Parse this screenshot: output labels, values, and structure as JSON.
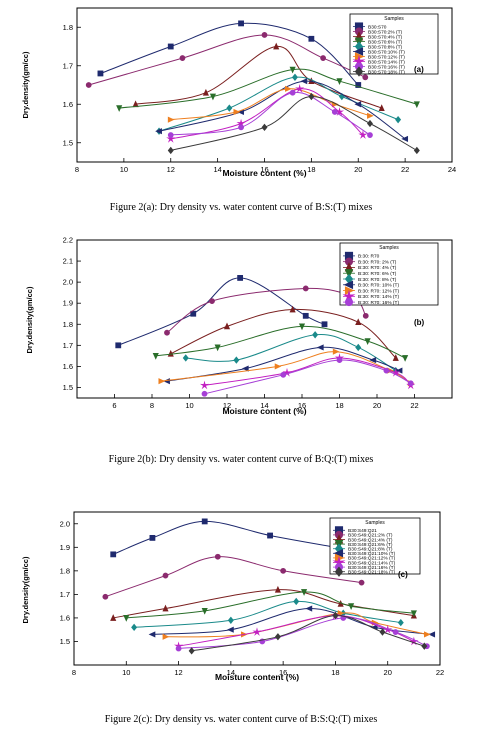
{
  "captions": [
    "Figure 2(a): Dry density vs. water content curve of  B:S:(T) mixes",
    "Figure 2(b): Dry density vs. water content curve of B:Q:(T) mixes",
    "Figure 2(c): Dry density vs. water content curve of  B:S:Q:(T) mixes"
  ],
  "chart_data": [
    {
      "type": "line",
      "panel_label": "(a)",
      "xlabel": "Moisture content (%)",
      "ylabel": "Dry.density(gm/cc)",
      "xlim": [
        8,
        24
      ],
      "ylim": [
        1.45,
        1.85
      ],
      "xticks": [
        8,
        10,
        12,
        14,
        16,
        18,
        20,
        22,
        24
      ],
      "yticks": [
        1.5,
        1.6,
        1.7,
        1.8
      ],
      "legend_title": "Samples",
      "legend_position": "top-right",
      "series": [
        {
          "name": "B30:S70",
          "color": "#1f2a6e",
          "marker": "square",
          "points": [
            [
              9,
              1.68
            ],
            [
              12,
              1.75
            ],
            [
              15,
              1.81
            ],
            [
              18,
              1.77
            ],
            [
              20,
              1.65
            ]
          ]
        },
        {
          "name": "B30:S70:2% (T)",
          "color": "#8b2a6e",
          "marker": "circle",
          "points": [
            [
              8.5,
              1.65
            ],
            [
              12.5,
              1.72
            ],
            [
              16,
              1.78
            ],
            [
              18.5,
              1.72
            ],
            [
              20.3,
              1.67
            ]
          ]
        },
        {
          "name": "B30:S70:4% (T)",
          "color": "#7a1f1f",
          "marker": "triangle-up",
          "points": [
            [
              10.5,
              1.6
            ],
            [
              13.5,
              1.63
            ],
            [
              16.5,
              1.75
            ],
            [
              18,
              1.66
            ],
            [
              21,
              1.59
            ]
          ]
        },
        {
          "name": "B30:S70:6% (T)",
          "color": "#2a6e2a",
          "marker": "triangle-down",
          "points": [
            [
              9.8,
              1.59
            ],
            [
              13.8,
              1.62
            ],
            [
              17.2,
              1.69
            ],
            [
              19.2,
              1.66
            ],
            [
              22.5,
              1.6
            ]
          ]
        },
        {
          "name": "B30:S70:8% (T)",
          "color": "#1a8a8a",
          "marker": "diamond",
          "points": [
            [
              11.5,
              1.53
            ],
            [
              14.5,
              1.59
            ],
            [
              17.3,
              1.67
            ],
            [
              19.3,
              1.62
            ],
            [
              21.7,
              1.56
            ]
          ]
        },
        {
          "name": "B30:S70:10% (T)",
          "color": "#1f2a6e",
          "marker": "triangle-left",
          "points": [
            [
              11.5,
              1.53
            ],
            [
              15,
              1.58
            ],
            [
              17.7,
              1.66
            ],
            [
              20,
              1.6
            ],
            [
              22,
              1.51
            ]
          ]
        },
        {
          "name": "B30:S70:12% (T)",
          "color": "#ee7f1f",
          "marker": "triangle-right",
          "points": [
            [
              12,
              1.56
            ],
            [
              14.8,
              1.58
            ],
            [
              17,
              1.64
            ],
            [
              19,
              1.6
            ],
            [
              20.5,
              1.57
            ]
          ]
        },
        {
          "name": "B30:S70:14% (T)",
          "color": "#c21fc2",
          "marker": "star",
          "points": [
            [
              12,
              1.51
            ],
            [
              15,
              1.55
            ],
            [
              17.5,
              1.64
            ],
            [
              19.2,
              1.58
            ],
            [
              20.2,
              1.52
            ]
          ]
        },
        {
          "name": "B30:S70:16% (T)",
          "color": "#a63fd6",
          "marker": "circle",
          "points": [
            [
              12,
              1.52
            ],
            [
              15,
              1.54
            ],
            [
              17.2,
              1.63
            ],
            [
              19,
              1.58
            ],
            [
              20.5,
              1.52
            ]
          ]
        },
        {
          "name": "B30:S70:18% (T)",
          "color": "#3a3a3a",
          "marker": "diamond",
          "points": [
            [
              12,
              1.48
            ],
            [
              16,
              1.54
            ],
            [
              18,
              1.62
            ],
            [
              20.5,
              1.55
            ],
            [
              22.5,
              1.48
            ]
          ]
        }
      ]
    },
    {
      "type": "line",
      "panel_label": "(b)",
      "xlabel": "Moisture content (%)",
      "ylabel": "Dry.density(gm/cc)",
      "xlim": [
        4,
        24
      ],
      "ylim": [
        1.45,
        2.2
      ],
      "xticks": [
        6,
        8,
        10,
        12,
        14,
        16,
        18,
        20,
        22
      ],
      "yticks": [
        1.5,
        1.6,
        1.7,
        1.8,
        1.9,
        2.0,
        2.1,
        2.2
      ],
      "legend_title": "Samples",
      "legend_position": "top-right",
      "series": [
        {
          "name": "B:30: R70",
          "color": "#1f2a6e",
          "marker": "square",
          "points": [
            [
              6.2,
              1.7
            ],
            [
              10.2,
              1.85
            ],
            [
              12.7,
              2.02
            ],
            [
              16.2,
              1.84
            ],
            [
              17.2,
              1.8
            ]
          ]
        },
        {
          "name": "B:30: R70: 2% (T)",
          "color": "#8b2a6e",
          "marker": "circle",
          "points": [
            [
              8.8,
              1.76
            ],
            [
              11.2,
              1.91
            ],
            [
              16.2,
              1.97
            ],
            [
              18.7,
              1.93
            ],
            [
              19.4,
              1.84
            ]
          ]
        },
        {
          "name": "B:30: R70: 4% (T)",
          "color": "#7a1f1f",
          "marker": "triangle-up",
          "points": [
            [
              9,
              1.66
            ],
            [
              12,
              1.79
            ],
            [
              15.5,
              1.87
            ],
            [
              19,
              1.81
            ],
            [
              21,
              1.64
            ]
          ]
        },
        {
          "name": "B:30: R70: 6% (T)",
          "color": "#2a6e2a",
          "marker": "triangle-down",
          "points": [
            [
              8.2,
              1.65
            ],
            [
              11.5,
              1.69
            ],
            [
              16,
              1.79
            ],
            [
              19.5,
              1.72
            ],
            [
              21.5,
              1.64
            ]
          ]
        },
        {
          "name": "B:30: R70: 8% (T)",
          "color": "#1a8a8a",
          "marker": "diamond",
          "points": [
            [
              9.8,
              1.64
            ],
            [
              12.5,
              1.63
            ],
            [
              16.7,
              1.75
            ],
            [
              19,
              1.69
            ],
            [
              21,
              1.58
            ]
          ]
        },
        {
          "name": "B:30: R70: 10% (T)",
          "color": "#1f2a6e",
          "marker": "triangle-left",
          "points": [
            [
              8.8,
              1.53
            ],
            [
              13,
              1.59
            ],
            [
              17,
              1.69
            ],
            [
              19.8,
              1.63
            ],
            [
              21.2,
              1.58
            ]
          ]
        },
        {
          "name": "B:30: R70: 12% (T)",
          "color": "#ee7f1f",
          "marker": "triangle-right",
          "points": [
            [
              8.5,
              1.53
            ],
            [
              14.7,
              1.6
            ],
            [
              17.8,
              1.67
            ],
            [
              20.7,
              1.58
            ],
            [
              21.8,
              1.52
            ]
          ]
        },
        {
          "name": "B:30: R70: 14% (T)",
          "color": "#c21fc2",
          "marker": "star",
          "points": [
            [
              10.8,
              1.51
            ],
            [
              15.2,
              1.57
            ],
            [
              18,
              1.64
            ],
            [
              21,
              1.57
            ],
            [
              21.8,
              1.51
            ]
          ]
        },
        {
          "name": "B:30: R70: 16% (T)",
          "color": "#a63fd6",
          "marker": "circle",
          "points": [
            [
              10.8,
              1.47
            ],
            [
              15,
              1.56
            ],
            [
              18,
              1.63
            ],
            [
              20.5,
              1.58
            ],
            [
              21.8,
              1.52
            ]
          ]
        }
      ]
    },
    {
      "type": "line",
      "panel_label": "(c)",
      "xlabel": "Moisture content (%)",
      "ylabel": "Dry.density(gm/cc)",
      "xlim": [
        8,
        22
      ],
      "ylim": [
        1.4,
        2.05
      ],
      "xticks": [
        8,
        10,
        12,
        14,
        16,
        18,
        20,
        22
      ],
      "yticks": [
        1.5,
        1.6,
        1.7,
        1.8,
        1.9,
        2.0
      ],
      "legend_title": "Samples",
      "legend_position": "top-right",
      "series": [
        {
          "name": "B30:S49:Q21",
          "color": "#1f2a6e",
          "marker": "square",
          "points": [
            [
              9.5,
              1.87
            ],
            [
              11,
              1.94
            ],
            [
              13,
              2.01
            ],
            [
              15.5,
              1.95
            ],
            [
              18,
              1.9
            ]
          ]
        },
        {
          "name": "B30:S49:Q21:2% (T)",
          "color": "#8b2a6e",
          "marker": "circle",
          "points": [
            [
              9.2,
              1.69
            ],
            [
              11.5,
              1.78
            ],
            [
              13.5,
              1.86
            ],
            [
              16,
              1.8
            ],
            [
              19,
              1.75
            ]
          ]
        },
        {
          "name": "B30:S49:Q21:4% (T)",
          "color": "#7a1f1f",
          "marker": "triangle-up",
          "points": [
            [
              9.5,
              1.6
            ],
            [
              11.5,
              1.64
            ],
            [
              15.8,
              1.72
            ],
            [
              18.2,
              1.66
            ],
            [
              21,
              1.61
            ]
          ]
        },
        {
          "name": "B30:S49:Q21:6% (T)",
          "color": "#2a6e2a",
          "marker": "triangle-down",
          "points": [
            [
              10,
              1.6
            ],
            [
              13,
              1.63
            ],
            [
              16.8,
              1.71
            ],
            [
              18.6,
              1.65
            ],
            [
              21,
              1.62
            ]
          ]
        },
        {
          "name": "B30:S49:Q21:8% (T)",
          "color": "#1a8a8a",
          "marker": "diamond",
          "points": [
            [
              10.3,
              1.56
            ],
            [
              14,
              1.59
            ],
            [
              16.5,
              1.67
            ],
            [
              18.3,
              1.62
            ],
            [
              20.5,
              1.58
            ]
          ]
        },
        {
          "name": "B30:S49:Q21:10% (T)",
          "color": "#1f2a6e",
          "marker": "triangle-left",
          "points": [
            [
              11,
              1.53
            ],
            [
              14,
              1.55
            ],
            [
              17,
              1.64
            ],
            [
              19.5,
              1.56
            ],
            [
              21.7,
              1.53
            ]
          ]
        },
        {
          "name": "B30:S49:Q21:12% (T)",
          "color": "#ee7f1f",
          "marker": "triangle-right",
          "points": [
            [
              11.5,
              1.52
            ],
            [
              14.5,
              1.53
            ],
            [
              18.2,
              1.62
            ],
            [
              19.5,
              1.58
            ],
            [
              21.5,
              1.53
            ]
          ]
        },
        {
          "name": "B30:S49:Q21:14% (T)",
          "color": "#c21fc2",
          "marker": "star",
          "points": [
            [
              12,
              1.48
            ],
            [
              15,
              1.54
            ],
            [
              18,
              1.61
            ],
            [
              20,
              1.55
            ],
            [
              21,
              1.5
            ]
          ]
        },
        {
          "name": "B30:S49:Q21:16% (T)",
          "color": "#a63fd6",
          "marker": "circle",
          "points": [
            [
              12,
              1.47
            ],
            [
              15.2,
              1.5
            ],
            [
              18.3,
              1.6
            ],
            [
              20.3,
              1.54
            ],
            [
              21.5,
              1.48
            ]
          ]
        },
        {
          "name": "B30:S49:Q21:18% (T)",
          "color": "#3a3a3a",
          "marker": "diamond",
          "points": [
            [
              12.5,
              1.46
            ],
            [
              15.8,
              1.52
            ],
            [
              18,
              1.61
            ],
            [
              19.8,
              1.54
            ],
            [
              21.4,
              1.48
            ]
          ]
        }
      ]
    }
  ]
}
